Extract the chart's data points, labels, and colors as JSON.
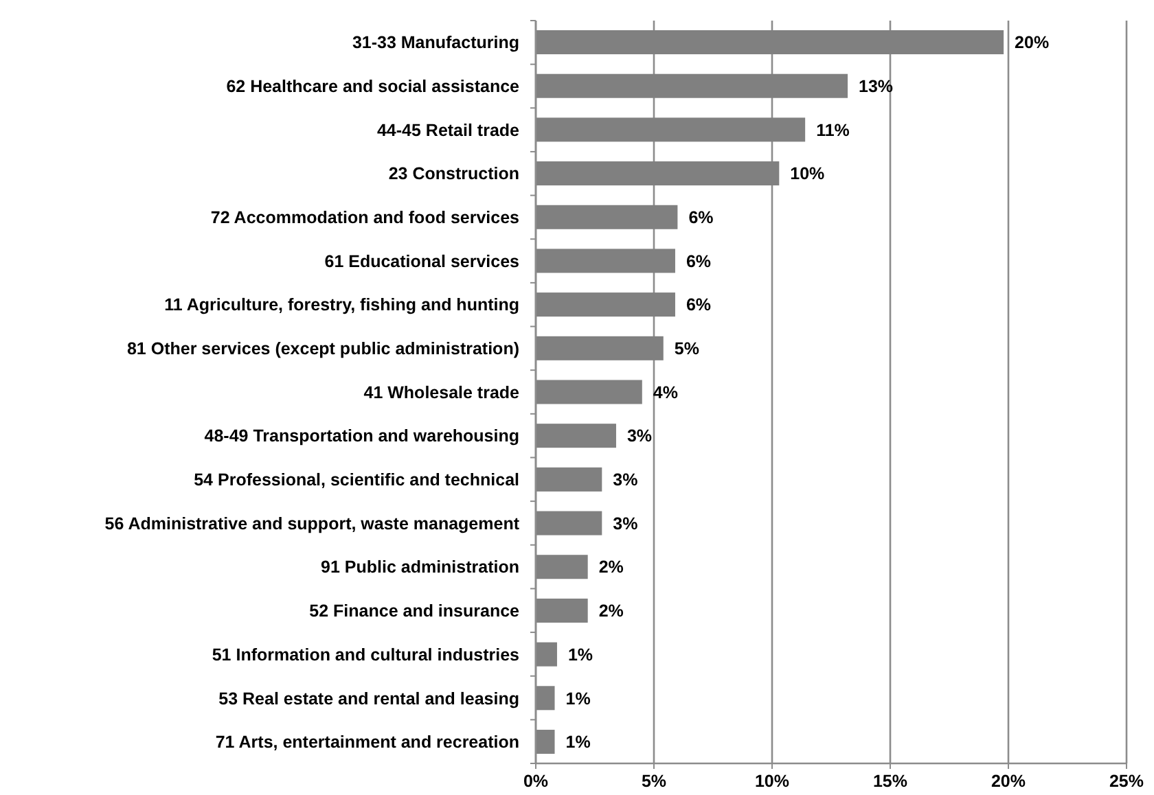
{
  "chart_data": {
    "type": "bar",
    "orientation": "horizontal",
    "categories": [
      "31-33 Manufacturing",
      "62 Healthcare and social assistance",
      "44-45 Retail trade",
      "23 Construction",
      "72 Accommodation and food services",
      "61 Educational services",
      "11 Agriculture, forestry, fishing and hunting",
      "81 Other services (except public administration)",
      "41 Wholesale trade",
      "48-49 Transportation and warehousing",
      "54 Professional, scientific and technical ",
      "56 Administrative and support, waste management ",
      "91 Public administration",
      "52 Finance and insurance",
      "51 Information and cultural industries",
      "53 Real estate and rental and leasing",
      "71 Arts, entertainment and recreation"
    ],
    "values": [
      19.8,
      13.2,
      11.4,
      10.3,
      6.0,
      5.9,
      5.9,
      5.4,
      4.5,
      3.4,
      2.8,
      2.8,
      2.2,
      2.2,
      0.9,
      0.8,
      0.8
    ],
    "value_labels": [
      "20%",
      "13%",
      "11%",
      "10%",
      "6%",
      "6%",
      "6%",
      "5%",
      "4%",
      "3%",
      "3%",
      "3%",
      "2%",
      "2%",
      "1%",
      "1%",
      "1%"
    ],
    "color": "#808080",
    "xlim": [
      0,
      25
    ],
    "xticks": [
      {
        "value": 0,
        "label": "0%"
      },
      {
        "value": 5,
        "label": "5%"
      },
      {
        "value": 10,
        "label": "10%"
      },
      {
        "value": 15,
        "label": "15%"
      },
      {
        "value": 20,
        "label": "20%"
      },
      {
        "value": 25,
        "label": "25%"
      }
    ],
    "grid": "x"
  }
}
